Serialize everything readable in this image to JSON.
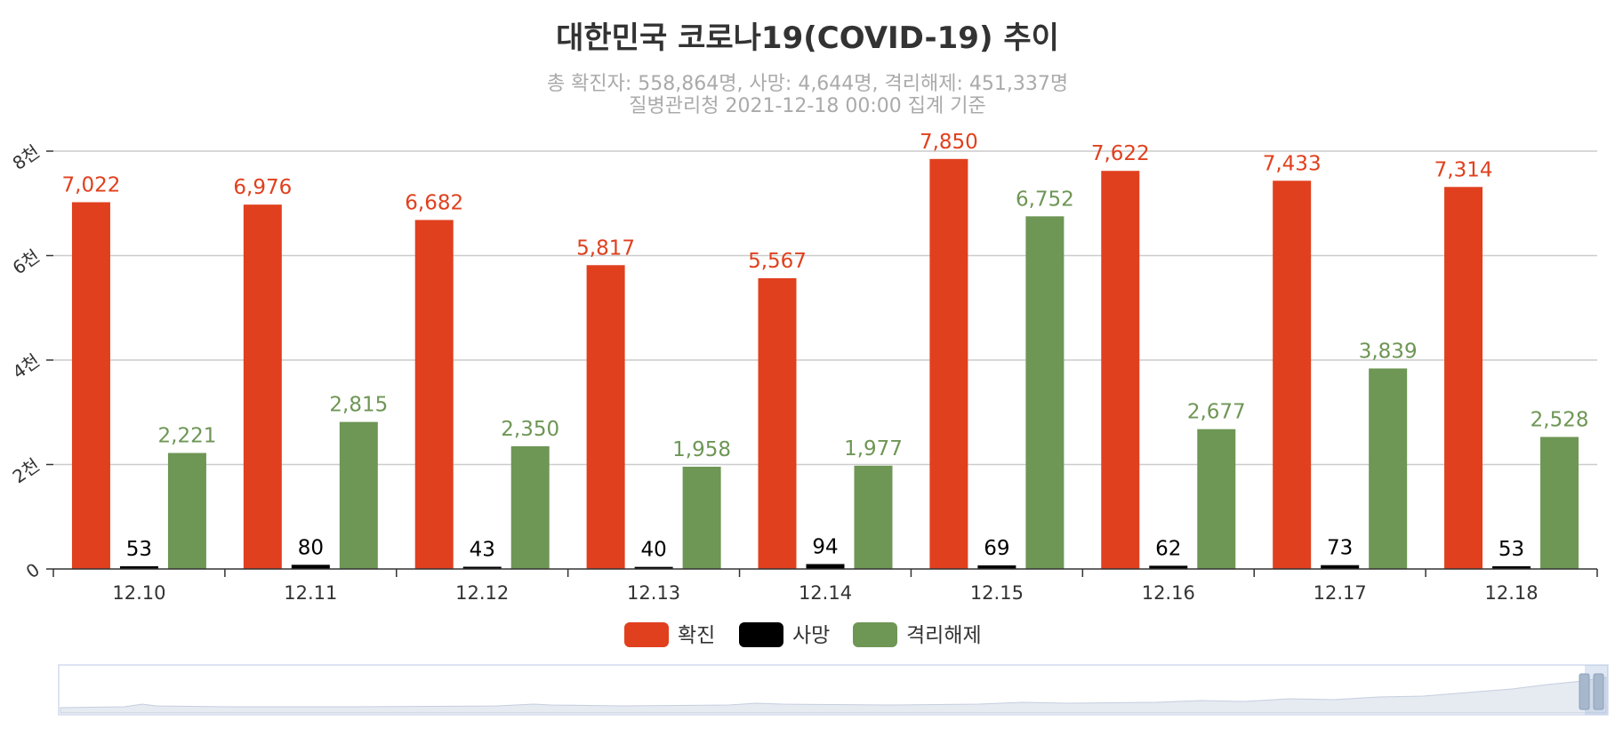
{
  "chart_data": {
    "type": "bar",
    "title": "대한민국 코로나19(COVID-19) 추이",
    "subtitle_lines": [
      "총 확진자: 558,864명, 사망: 4,644명, 격리해제: 451,337명",
      "질병관리청 2021-12-18 00:00 집계 기준"
    ],
    "categories": [
      "12.10",
      "12.11",
      "12.12",
      "12.13",
      "12.14",
      "12.15",
      "12.16",
      "12.17",
      "12.18"
    ],
    "series": [
      {
        "name": "확진",
        "color": "#e0401e",
        "values": [
          7022,
          6976,
          6682,
          5817,
          5567,
          7850,
          7622,
          7433,
          7314
        ],
        "labels": [
          "7,022",
          "6,976",
          "6,682",
          "5,817",
          "5,567",
          "7,850",
          "7,622",
          "7,433",
          "7,314"
        ]
      },
      {
        "name": "사망",
        "color": "#000000",
        "values": [
          53,
          80,
          43,
          40,
          94,
          69,
          62,
          73,
          53
        ],
        "labels": [
          "53",
          "80",
          "43",
          "40",
          "94",
          "69",
          "62",
          "73",
          "53"
        ]
      },
      {
        "name": "격리해제",
        "color": "#6e9655",
        "values": [
          2221,
          2815,
          2350,
          1958,
          1977,
          6752,
          2677,
          3839,
          2528
        ],
        "labels": [
          "2,221",
          "2,815",
          "2,350",
          "1,958",
          "1,977",
          "6,752",
          "2,677",
          "3,839",
          "2,528"
        ]
      }
    ],
    "ylim": [
      0,
      8000
    ],
    "yticks": [
      0,
      2000,
      4000,
      6000,
      8000
    ],
    "ytick_labels": [
      "0",
      "2천",
      "4천",
      "6천",
      "8천"
    ],
    "grid": true,
    "legend_position": "bottom-center",
    "data_zoom": true
  }
}
